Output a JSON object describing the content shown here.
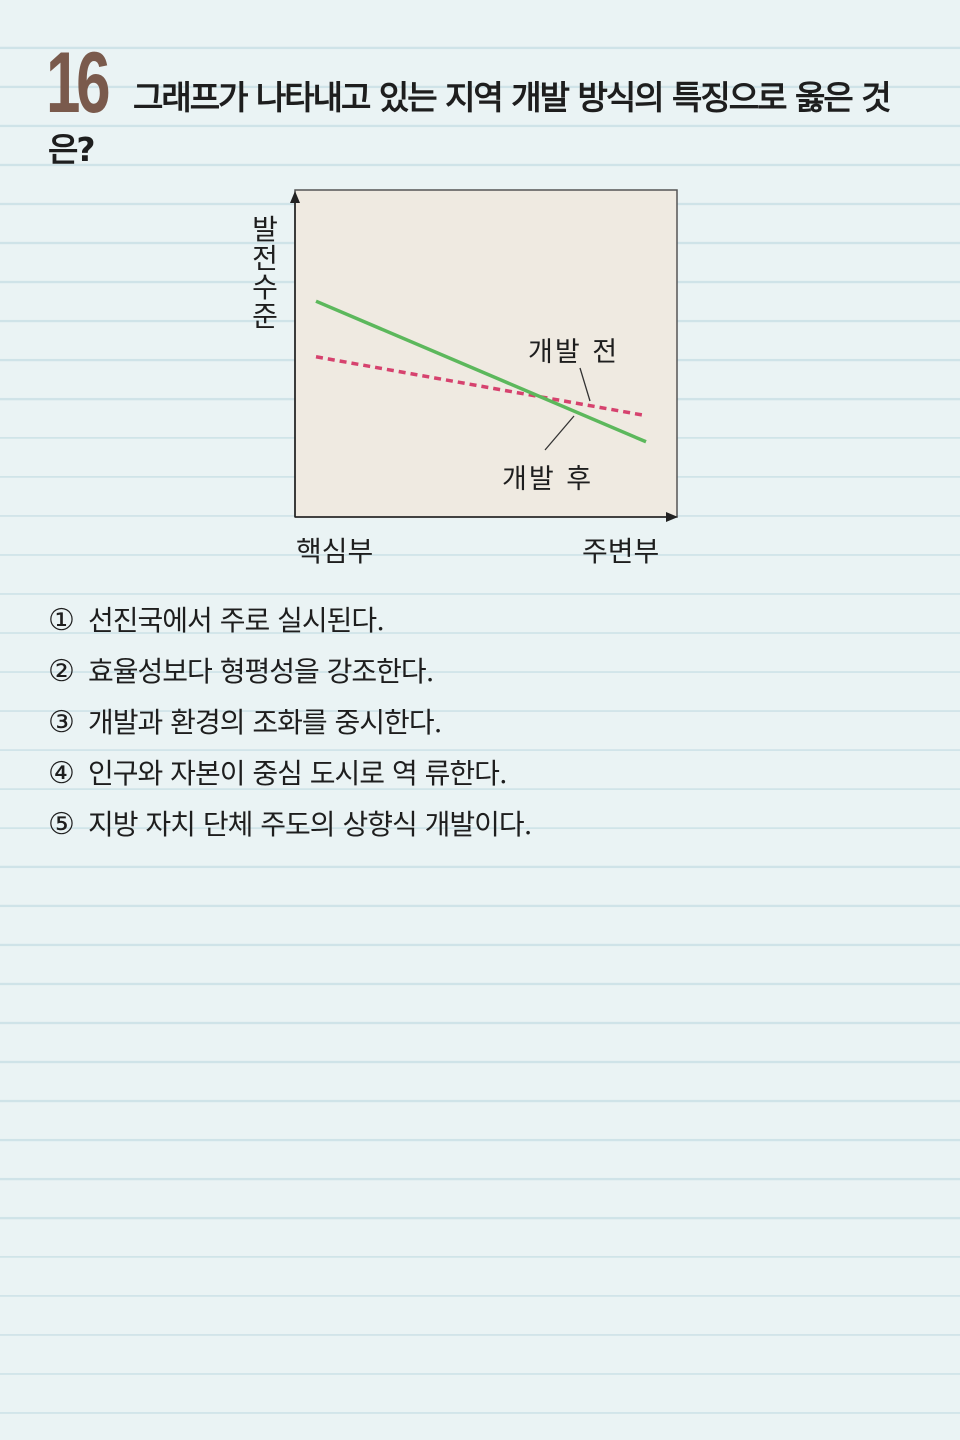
{
  "question": {
    "number": "16",
    "text_line1": "그래프가 나타내고 있는 지역 개발 방식의 특징으로 옳은 것",
    "text_line2": "은?"
  },
  "chart_data": {
    "type": "line",
    "ylabel": "발전 수준",
    "xlabel_left": "핵심부",
    "xlabel_right": "주변부",
    "x_range": [
      "핵심부",
      "주변부"
    ],
    "series": [
      {
        "name": "개발 전",
        "style": "dashed",
        "color": "#d6426e",
        "values": [
          0.49,
          0.31
        ]
      },
      {
        "name": "개발 후",
        "style": "solid",
        "color": "#5cb85c",
        "values": [
          0.66,
          0.23
        ]
      }
    ],
    "ylim": [
      0,
      1
    ],
    "grid": false,
    "background": "#efeae1"
  },
  "choices": [
    {
      "mark": "①",
      "text": "선진국에서 주로 실시된다."
    },
    {
      "mark": "②",
      "text": "효율성보다 형평성을 강조한다."
    },
    {
      "mark": "③",
      "text": "개발과 환경의 조화를 중시한다."
    },
    {
      "mark": "④",
      "text": "인구와 자본이 중심 도시로 역 류한다."
    },
    {
      "mark": "⑤",
      "text": "지방 자치 단체 주도의 상향식 개발이다."
    }
  ]
}
